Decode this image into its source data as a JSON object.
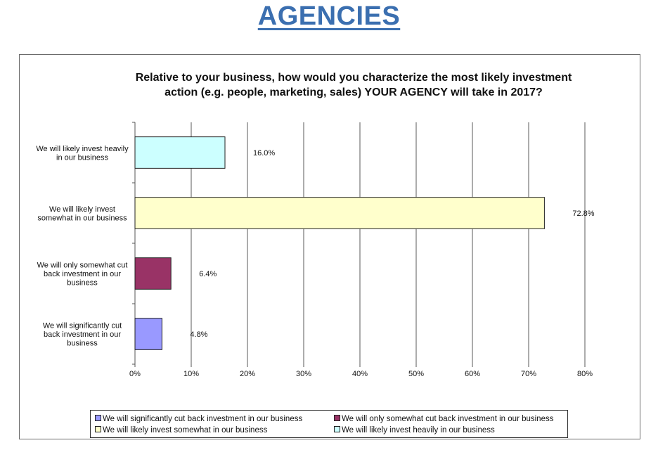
{
  "page": {
    "heading": "AGENCIES"
  },
  "chart_data": {
    "type": "bar",
    "orientation": "horizontal",
    "title_lines": [
      "Relative to your business, how would you characterize the most likely investment",
      "action (e.g. people, marketing, sales) YOUR AGENCY will take in 2017?"
    ],
    "categories": [
      [
        "We will likely invest heavily",
        "in our business"
      ],
      [
        "We will likely invest",
        "somewhat in our business"
      ],
      [
        "We will only somewhat cut",
        "back investment in our",
        "business"
      ],
      [
        "We will significantly cut",
        "back investment in our",
        "business"
      ]
    ],
    "values": [
      16.0,
      72.8,
      6.4,
      4.8
    ],
    "value_labels": [
      "16.0%",
      "72.8%",
      "6.4%",
      "4.8%"
    ],
    "colors": [
      "#ccffff",
      "#ffffcc",
      "#993366",
      "#9999ff"
    ],
    "xlim": [
      0,
      80
    ],
    "x_ticks": [
      "0%",
      "10%",
      "20%",
      "30%",
      "40%",
      "50%",
      "60%",
      "70%",
      "80%"
    ],
    "grid": true,
    "legend": {
      "placement": "bottom",
      "entries": [
        {
          "label": "We will significantly cut back investment in our business",
          "color": "#9999ff"
        },
        {
          "label": "We will only somewhat cut back investment in our business",
          "color": "#993366"
        },
        {
          "label": "We will likely invest somewhat in our business",
          "color": "#ffffcc"
        },
        {
          "label": "We will likely invest heavily in our business",
          "color": "#ccffff"
        }
      ]
    }
  }
}
